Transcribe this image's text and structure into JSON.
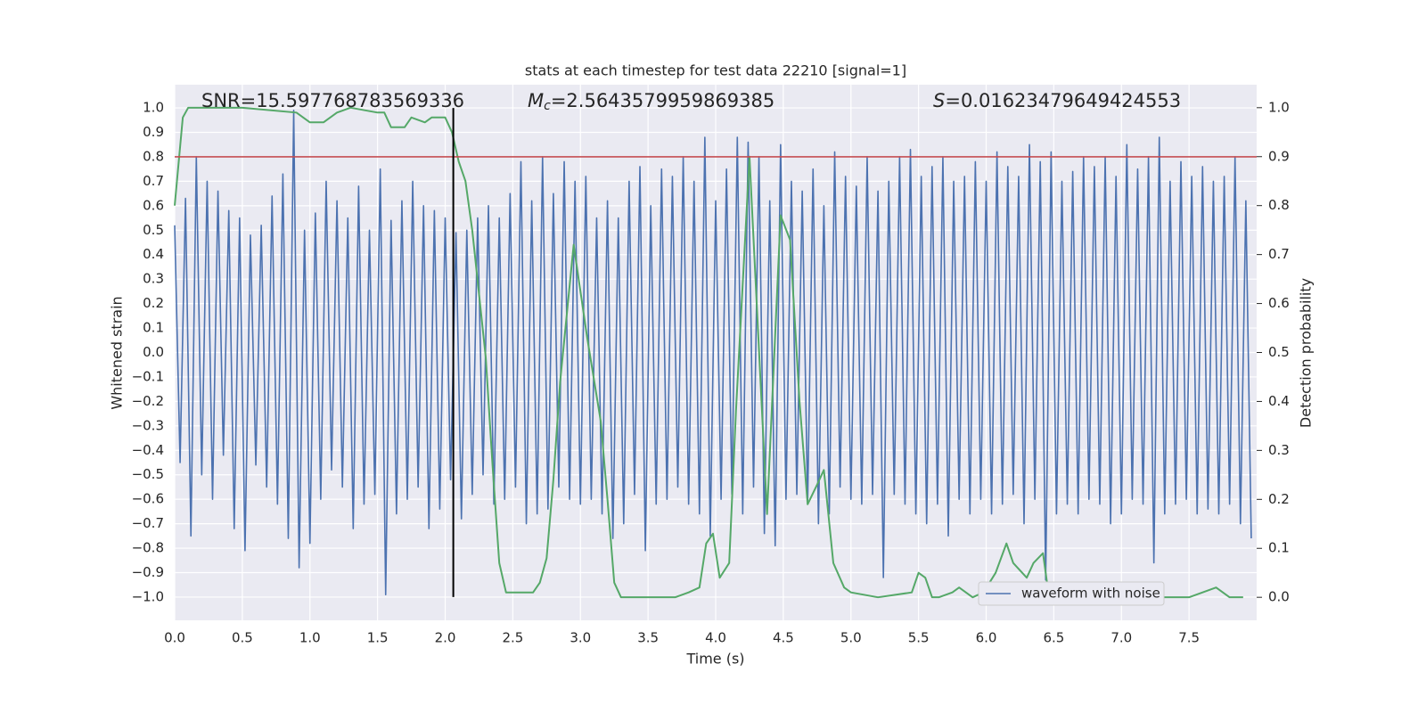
{
  "chart_data": {
    "type": "line",
    "title": "stats at each timestep for test data 22210 [signal=1]",
    "xlabel": "Time (s)",
    "ylabel": "Whitened strain",
    "y2label": "Detection probability",
    "annotations": {
      "snr": "SNR=15.597768783569336",
      "mc": {
        "symbol": "M",
        "subscript": "c",
        "text": "=2.5643579959869385"
      },
      "s": {
        "symbol": "S",
        "text": "=0.01623479649424553"
      }
    },
    "legend": "lower right",
    "grid": true,
    "background": "#eaeaf2",
    "xlim": [
      0,
      8.0
    ],
    "ylim": [
      -1.095,
      1.095
    ],
    "y2lim": [
      -0.047,
      1.047
    ],
    "xticks": [
      {
        "value": 0,
        "label": "0.0"
      },
      0.5,
      {
        "value": 1,
        "label": "1.0"
      },
      1.5,
      {
        "value": 2,
        "label": "2.0"
      },
      2.5,
      {
        "value": 3,
        "label": "3.0"
      },
      3.5,
      {
        "value": 4,
        "label": "4.0"
      },
      4.5,
      {
        "value": 5,
        "label": "5.0"
      },
      5.5,
      {
        "value": 6,
        "label": "6.0"
      },
      6.5,
      {
        "value": 7,
        "label": "7.0"
      },
      7.5
    ],
    "yticks": [
      {
        "value": -1,
        "label": "−1.0"
      },
      {
        "value": -0.9,
        "label": "−0.9"
      },
      {
        "value": -0.8,
        "label": "−0.8"
      },
      {
        "value": -0.7,
        "label": "−0.7"
      },
      {
        "value": -0.6,
        "label": "−0.6"
      },
      {
        "value": -0.5,
        "label": "−0.5"
      },
      {
        "value": -0.4,
        "label": "−0.4"
      },
      {
        "value": -0.3,
        "label": "−0.3"
      },
      {
        "value": -0.2,
        "label": "−0.2"
      },
      {
        "value": -0.1,
        "label": "−0.1"
      },
      {
        "value": 0,
        "label": "0.0"
      },
      0.1,
      0.2,
      0.3,
      0.4,
      0.5,
      0.6,
      0.7,
      0.8,
      0.9,
      {
        "value": 1,
        "label": "1.0"
      }
    ],
    "y2ticks": [
      {
        "value": 0,
        "label": "0.0"
      },
      0.1,
      0.2,
      0.3,
      0.4,
      0.5,
      0.6,
      0.7,
      0.8,
      0.9,
      {
        "value": 1,
        "label": "1.0"
      }
    ],
    "threshold": {
      "value": 0.8,
      "color": "#c44e52"
    },
    "marker_line": {
      "x": 2.06,
      "ymin": -1,
      "ymax": 1,
      "color": "#000000"
    },
    "series": [
      {
        "name": "waveform with noise",
        "color": "#4c72b0",
        "x": [
          0,
          0.04,
          0.08,
          0.12,
          0.16,
          0.2,
          0.24,
          0.28,
          0.32,
          0.36,
          0.4,
          0.44,
          0.48,
          0.52,
          0.56,
          0.6,
          0.64,
          0.68,
          0.72,
          0.76,
          0.8,
          0.84,
          0.88,
          0.92,
          0.96,
          1,
          1.04,
          1.08,
          1.12,
          1.16,
          1.2,
          1.24,
          1.28,
          1.32,
          1.36,
          1.4,
          1.44,
          1.48,
          1.52,
          1.56,
          1.6,
          1.64,
          1.68,
          1.72,
          1.76,
          1.8,
          1.84,
          1.88,
          1.92,
          1.96,
          2,
          2.04,
          2.08,
          2.12,
          2.16,
          2.2,
          2.24,
          2.28,
          2.32,
          2.36,
          2.4,
          2.44,
          2.48,
          2.52,
          2.56,
          2.6,
          2.64,
          2.68,
          2.72,
          2.76,
          2.8,
          2.84,
          2.88,
          2.92,
          2.96,
          3,
          3.04,
          3.08,
          3.12,
          3.16,
          3.2,
          3.24,
          3.28,
          3.32,
          3.36,
          3.4,
          3.44,
          3.48,
          3.52,
          3.56,
          3.6,
          3.64,
          3.68,
          3.72,
          3.76,
          3.8,
          3.84,
          3.88,
          3.92,
          3.96,
          4,
          4.04,
          4.08,
          4.12,
          4.16,
          4.2,
          4.24,
          4.28,
          4.32,
          4.36,
          4.4,
          4.44,
          4.48,
          4.52,
          4.56,
          4.6,
          4.64,
          4.68,
          4.72,
          4.76,
          4.8,
          4.84,
          4.88,
          4.92,
          4.96,
          5,
          5.04,
          5.08,
          5.12,
          5.16,
          5.2,
          5.24,
          5.28,
          5.32,
          5.36,
          5.4,
          5.44,
          5.48,
          5.52,
          5.56,
          5.6,
          5.64,
          5.68,
          5.72,
          5.76,
          5.8,
          5.84,
          5.88,
          5.92,
          5.96,
          6,
          6.04,
          6.08,
          6.12,
          6.16,
          6.2,
          6.24,
          6.28,
          6.32,
          6.36,
          6.4,
          6.44,
          6.48,
          6.52,
          6.56,
          6.6,
          6.64,
          6.68,
          6.72,
          6.76,
          6.8,
          6.84,
          6.88,
          6.92,
          6.96,
          7,
          7.04,
          7.08,
          7.12,
          7.16,
          7.2,
          7.24,
          7.28,
          7.32,
          7.36,
          7.4,
          7.44,
          7.48,
          7.52,
          7.56,
          7.6,
          7.64,
          7.68,
          7.72,
          7.76,
          7.8,
          7.84,
          7.88,
          7.92,
          7.96
        ],
        "values": [
          0.52,
          -0.45,
          0.63,
          -0.75,
          0.8,
          -0.5,
          0.7,
          -0.6,
          0.66,
          -0.42,
          0.58,
          -0.72,
          0.55,
          -0.81,
          0.48,
          -0.46,
          0.52,
          -0.55,
          0.64,
          -0.62,
          0.73,
          -0.76,
          0.99,
          -0.88,
          0.5,
          -0.78,
          0.57,
          -0.6,
          0.7,
          -0.48,
          0.62,
          -0.55,
          0.55,
          -0.72,
          0.68,
          -0.62,
          0.5,
          -0.58,
          0.75,
          -0.99,
          0.54,
          -0.66,
          0.62,
          -0.6,
          0.7,
          -0.55,
          0.6,
          -0.72,
          0.58,
          -0.64,
          0.55,
          -0.52,
          0.49,
          -0.68,
          0.5,
          -0.58,
          0.55,
          -0.5,
          0.6,
          -0.62,
          0.55,
          -0.6,
          0.65,
          -0.55,
          0.78,
          -0.7,
          0.62,
          -0.66,
          0.8,
          -0.64,
          0.65,
          -0.55,
          0.78,
          -0.6,
          0.7,
          -0.62,
          0.72,
          -0.6,
          0.55,
          -0.66,
          0.62,
          -0.76,
          0.55,
          -0.7,
          0.7,
          -0.58,
          0.76,
          -0.81,
          0.6,
          -0.62,
          0.75,
          -0.6,
          0.72,
          -0.55,
          0.8,
          -0.62,
          0.7,
          -0.66,
          0.88,
          -0.75,
          0.62,
          -0.6,
          0.75,
          -0.58,
          0.88,
          -0.66,
          0.86,
          -0.55,
          0.8,
          -0.74,
          0.62,
          -0.79,
          0.85,
          -0.6,
          0.7,
          -0.58,
          0.66,
          -0.62,
          0.75,
          -0.7,
          0.6,
          -0.66,
          0.82,
          -0.55,
          0.72,
          -0.6,
          0.68,
          -0.62,
          0.8,
          -0.58,
          0.66,
          -0.92,
          0.7,
          -0.58,
          0.8,
          -0.62,
          0.83,
          -0.66,
          0.72,
          -0.7,
          0.76,
          -0.62,
          0.8,
          -0.75,
          0.7,
          -0.6,
          0.72,
          -0.66,
          0.78,
          -0.6,
          0.7,
          -0.66,
          0.82,
          -0.62,
          0.76,
          -0.58,
          0.72,
          -0.7,
          0.85,
          -0.6,
          0.78,
          -0.93,
          0.82,
          -0.66,
          0.7,
          -0.62,
          0.74,
          -0.66,
          0.8,
          -0.6,
          0.76,
          -0.62,
          0.8,
          -0.7,
          0.72,
          -0.66,
          0.85,
          -0.6,
          0.75,
          -0.62,
          0.8,
          -0.86,
          0.88,
          -0.66,
          0.7,
          -0.62,
          0.78,
          -0.6,
          0.72,
          -0.66,
          0.76,
          -0.64,
          0.7,
          -0.66,
          0.72,
          -0.62,
          0.8,
          -0.7,
          0.62,
          -0.76
        ]
      },
      {
        "color": "#55a868",
        "axis": "y2",
        "x": [
          0,
          0.06,
          0.1,
          0.5,
          0.9,
          1.0,
          1.1,
          1.2,
          1.3,
          1.5,
          1.55,
          1.6,
          1.7,
          1.75,
          1.85,
          1.9,
          2.0,
          2.05,
          2.1,
          2.15,
          2.2,
          2.3,
          2.35,
          2.4,
          2.45,
          2.5,
          2.6,
          2.65,
          2.7,
          2.75,
          2.8,
          2.85,
          2.95,
          3.05,
          3.15,
          3.2,
          3.25,
          3.3,
          3.5,
          3.7,
          3.8,
          3.88,
          3.93,
          3.98,
          4.03,
          4.1,
          4.15,
          4.25,
          4.38,
          4.48,
          4.55,
          4.62,
          4.68,
          4.75,
          4.8,
          4.87,
          4.95,
          5.0,
          5.2,
          5.45,
          5.5,
          5.55,
          5.6,
          5.65,
          5.75,
          5.8,
          5.85,
          5.9,
          5.98,
          6.07,
          6.15,
          6.2,
          6.3,
          6.35,
          6.42,
          6.45,
          6.5,
          6.7,
          7.0,
          7.5,
          7.7,
          7.8,
          7.9
        ],
        "values": [
          0.8,
          0.98,
          1.0,
          1.0,
          0.99,
          0.97,
          0.97,
          0.99,
          1.0,
          0.99,
          0.99,
          0.96,
          0.96,
          0.98,
          0.97,
          0.98,
          0.98,
          0.95,
          0.89,
          0.85,
          0.75,
          0.49,
          0.27,
          0.07,
          0.01,
          0.01,
          0.01,
          0.01,
          0.03,
          0.08,
          0.24,
          0.44,
          0.72,
          0.53,
          0.36,
          0.2,
          0.03,
          0.0,
          0.0,
          0.0,
          0.01,
          0.02,
          0.11,
          0.13,
          0.04,
          0.07,
          0.38,
          0.9,
          0.17,
          0.78,
          0.73,
          0.4,
          0.19,
          0.23,
          0.26,
          0.07,
          0.02,
          0.01,
          0.0,
          0.01,
          0.05,
          0.04,
          0.0,
          0.0,
          0.01,
          0.02,
          0.01,
          0.0,
          0.01,
          0.05,
          0.11,
          0.07,
          0.04,
          0.07,
          0.09,
          0.03,
          0.01,
          0.0,
          0.0,
          0.0,
          0.02,
          0.0,
          0.0
        ]
      }
    ]
  }
}
